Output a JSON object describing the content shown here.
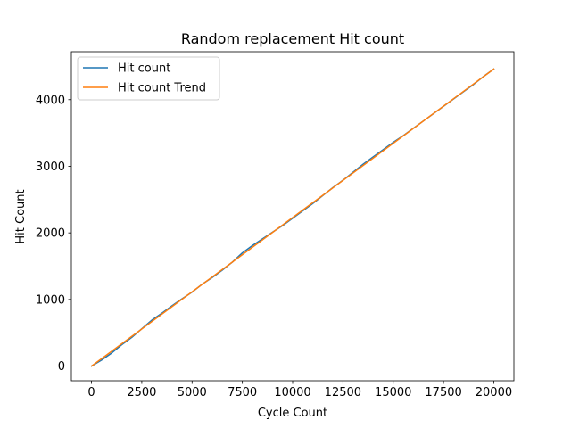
{
  "chart_data": {
    "type": "line",
    "title": "Random replacement Hit count",
    "xlabel": "Cycle Count",
    "ylabel": "Hit Count",
    "xlim": [
      -1000,
      21000
    ],
    "ylim": [
      -220,
      4720
    ],
    "x_ticks": [
      0,
      2500,
      5000,
      7500,
      10000,
      12500,
      15000,
      17500,
      20000
    ],
    "y_ticks": [
      0,
      1000,
      2000,
      3000,
      4000
    ],
    "grid": false,
    "legend_position": "upper left",
    "series": [
      {
        "name": "Hit count",
        "color": "#1f77b4",
        "x": [
          0,
          500,
          1000,
          1500,
          2000,
          2500,
          3000,
          3500,
          4000,
          4500,
          5000,
          5500,
          6000,
          6500,
          7000,
          7500,
          8000,
          8500,
          9000,
          9500,
          10000,
          10500,
          11000,
          11500,
          12000,
          12500,
          13000,
          13500,
          14000,
          14500,
          15000,
          15500,
          16000,
          16500,
          17000,
          17500,
          18000,
          18500,
          19000,
          19500,
          20000
        ],
        "values": [
          0,
          90,
          195,
          320,
          430,
          560,
          690,
          795,
          905,
          1010,
          1110,
          1230,
          1330,
          1440,
          1560,
          1700,
          1810,
          1910,
          2010,
          2110,
          2220,
          2330,
          2440,
          2560,
          2680,
          2790,
          2910,
          3030,
          3140,
          3250,
          3360,
          3460,
          3570,
          3680,
          3790,
          3900,
          4010,
          4120,
          4230,
          4350,
          4460
        ]
      },
      {
        "name": "Hit count Trend",
        "color": "#ff7f0e",
        "x": [
          0,
          20000
        ],
        "values": [
          0,
          4460
        ]
      }
    ]
  }
}
